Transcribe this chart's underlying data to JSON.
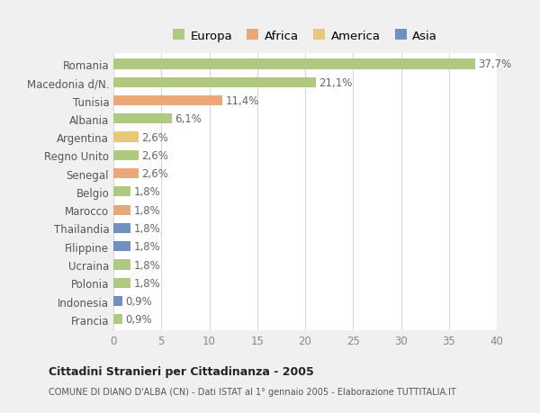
{
  "countries": [
    "Romania",
    "Macedonia d/N.",
    "Tunisia",
    "Albania",
    "Argentina",
    "Regno Unito",
    "Senegal",
    "Belgio",
    "Marocco",
    "Thailandia",
    "Filippine",
    "Ucraina",
    "Polonia",
    "Indonesia",
    "Francia"
  ],
  "values": [
    37.7,
    21.1,
    11.4,
    6.1,
    2.6,
    2.6,
    2.6,
    1.8,
    1.8,
    1.8,
    1.8,
    1.8,
    1.8,
    0.9,
    0.9
  ],
  "labels": [
    "37,7%",
    "21,1%",
    "11,4%",
    "6,1%",
    "2,6%",
    "2,6%",
    "2,6%",
    "1,8%",
    "1,8%",
    "1,8%",
    "1,8%",
    "1,8%",
    "1,8%",
    "0,9%",
    "0,9%"
  ],
  "colors": [
    "#afc980",
    "#afc980",
    "#e8a97a",
    "#afc980",
    "#e8c87a",
    "#afc980",
    "#e8a97a",
    "#afc980",
    "#e8a97a",
    "#7090c0",
    "#7090c0",
    "#afc980",
    "#afc980",
    "#7090c0",
    "#afc980"
  ],
  "legend_labels": [
    "Europa",
    "Africa",
    "America",
    "Asia"
  ],
  "legend_colors": [
    "#afc980",
    "#e8a97a",
    "#e8c87a",
    "#7090c0"
  ],
  "xlim": [
    0,
    40
  ],
  "xticks": [
    0,
    5,
    10,
    15,
    20,
    25,
    30,
    35,
    40
  ],
  "title_bold": "Cittadini Stranieri per Cittadinanza - 2005",
  "subtitle": "COMUNE DI DIANO D'ALBA (CN) - Dati ISTAT al 1° gennaio 2005 - Elaborazione TUTTITALIA.IT",
  "background_color": "#f0f0f0",
  "plot_bg_color": "#ffffff",
  "bar_height": 0.55,
  "grid_color": "#d8d8d8",
  "label_fontsize": 8.5,
  "tick_fontsize": 8.5,
  "legend_fontsize": 9.5
}
